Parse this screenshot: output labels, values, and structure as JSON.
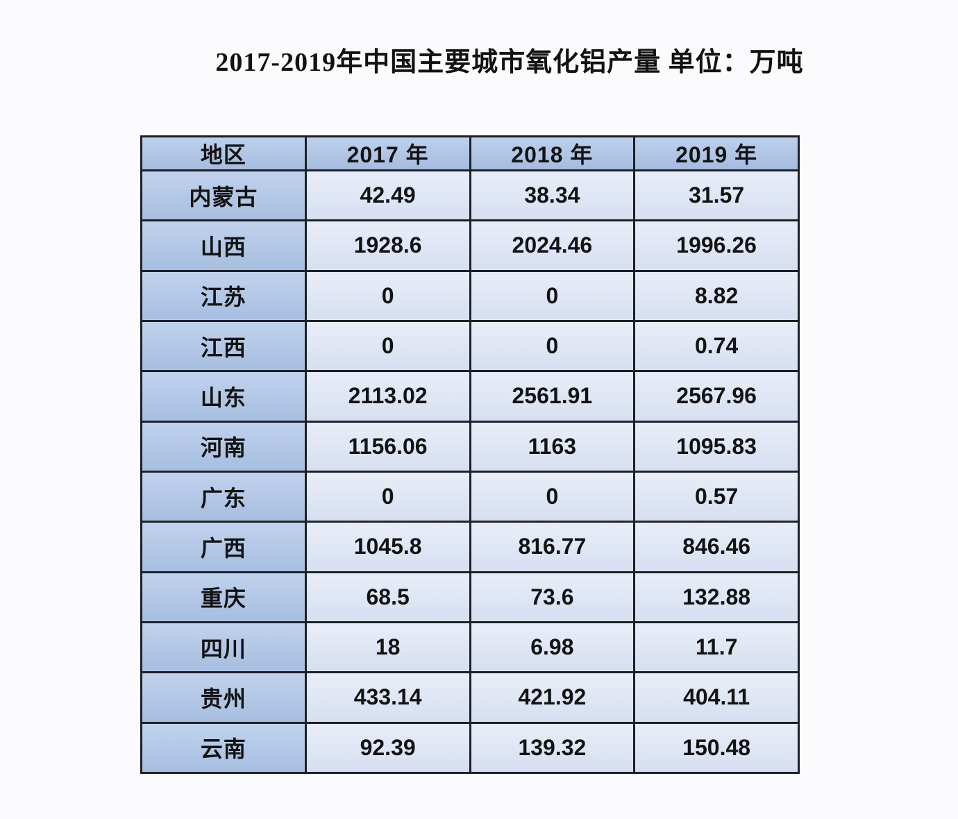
{
  "page": {
    "background": "#fbfbfd",
    "title": "2017-2019年中国主要城市氧化铝产量 单位：万吨"
  },
  "colors": {
    "header_cell_top": "#bdd0ec",
    "header_cell_bottom": "#a5bcdf",
    "data_cell_top": "#e9edf8",
    "data_cell_bottom": "#d6dff1",
    "border": "#1d2127",
    "text": "#131313"
  },
  "chart_data": {
    "type": "table",
    "title": "2017-2019年中国主要城市氧化铝产量 单位：万吨",
    "unit_label": "单位：万吨",
    "columns": [
      "地区",
      "2017 年",
      "2018 年",
      "2019 年"
    ],
    "rows": [
      {
        "region": "内蒙古",
        "values": [
          "42.49",
          "38.34",
          "31.57"
        ]
      },
      {
        "region": "山西",
        "values": [
          "1928.6",
          "2024.46",
          "1996.26"
        ]
      },
      {
        "region": "江苏",
        "values": [
          "0",
          "0",
          "8.82"
        ]
      },
      {
        "region": "江西",
        "values": [
          "0",
          "0",
          "0.74"
        ]
      },
      {
        "region": "山东",
        "values": [
          "2113.02",
          "2561.91",
          "2567.96"
        ]
      },
      {
        "region": "河南",
        "values": [
          "1156.06",
          "1163",
          "1095.83"
        ]
      },
      {
        "region": "广东",
        "values": [
          "0",
          "0",
          "0.57"
        ]
      },
      {
        "region": "广西",
        "values": [
          "1045.8",
          "816.77",
          "846.46"
        ]
      },
      {
        "region": "重庆",
        "values": [
          "68.5",
          "73.6",
          "132.88"
        ]
      },
      {
        "region": "四川",
        "values": [
          "18",
          "6.98",
          "11.7"
        ]
      },
      {
        "region": "贵州",
        "values": [
          "433.14",
          "421.92",
          "404.11"
        ]
      },
      {
        "region": "云南",
        "values": [
          "92.39",
          "139.32",
          "150.48"
        ]
      }
    ]
  }
}
